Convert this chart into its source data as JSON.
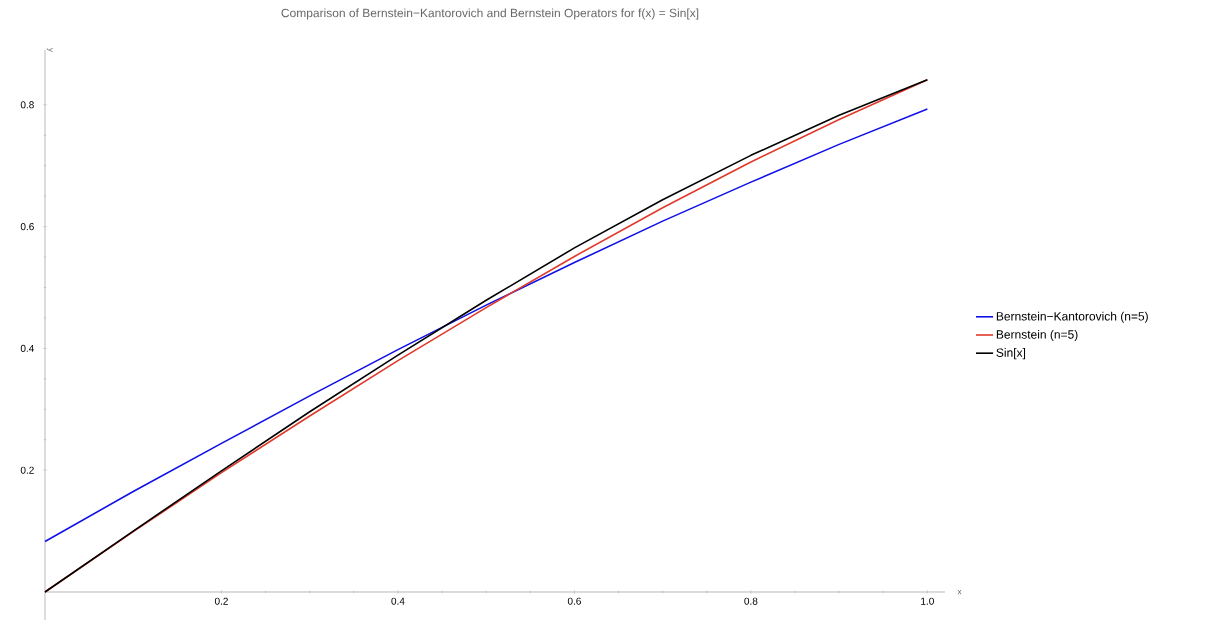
{
  "chart_data": {
    "type": "line",
    "title": "Comparison of Bernstein−Kantorovich and Bernstein Operators for f(x) = Sin[x]",
    "xlabel": "x",
    "ylabel": "y",
    "x": [
      0,
      0.1,
      0.2,
      0.3,
      0.4,
      0.5,
      0.6,
      0.7,
      0.8,
      0.9,
      1.0
    ],
    "series": [
      {
        "name": "Bernstein−Kantorovich (n=5)",
        "color": "#1010e8",
        "values": [
          0.083,
          0.165,
          0.244,
          0.322,
          0.398,
          0.471,
          0.541,
          0.609,
          0.673,
          0.735,
          0.793
        ]
      },
      {
        "name": "Bernstein (n=5)",
        "color": "#e03a2a",
        "values": [
          0,
          0.099,
          0.196,
          0.289,
          0.38,
          0.467,
          0.551,
          0.631,
          0.706,
          0.776,
          0.841
        ]
      },
      {
        "name": "Sin[x]",
        "color": "#000000",
        "values": [
          0,
          0.1,
          0.199,
          0.296,
          0.389,
          0.479,
          0.565,
          0.644,
          0.717,
          0.783,
          0.841
        ]
      }
    ],
    "xlim": [
      0,
      1.02
    ],
    "ylim": [
      -0.046,
      0.89
    ],
    "xticks": [
      0.2,
      0.4,
      0.6,
      0.8,
      {
        "value": 1,
        "label": "1.0"
      }
    ],
    "yticks": [
      0.2,
      0.4,
      0.6,
      0.8
    ],
    "grid": false,
    "legend": "right",
    "marker": "none",
    "line_style": "solid"
  }
}
